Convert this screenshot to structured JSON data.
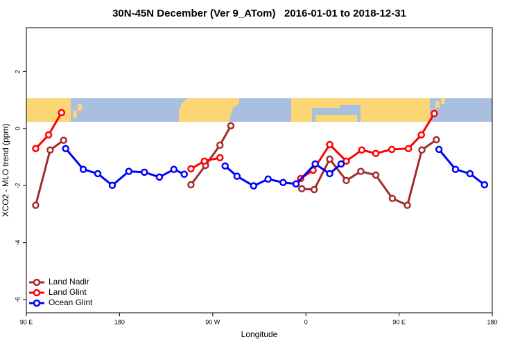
{
  "chart_data": {
    "type": "line",
    "title": "30N-45N December (Ver 9_ATom)   2016-01-01 to 2018-12-31",
    "x_label": "Longitude",
    "y_label": "XCO2 - MLO trend (ppm)",
    "xlim": [
      90,
      540
    ],
    "ylim": [
      -6.46,
      3.54
    ],
    "xticks": [
      {
        "value": 90,
        "label": "90 E"
      },
      {
        "value": 180,
        "label": "180"
      },
      {
        "value": 270,
        "label": "90 W"
      },
      {
        "value": 360,
        "label": "0"
      },
      {
        "value": 450,
        "label": "90 E"
      },
      {
        "value": 540,
        "label": "180"
      }
    ],
    "yticks": [
      -6,
      -4,
      -2,
      0,
      2
    ],
    "legend": "bottom-left",
    "series": [
      {
        "name": "Land Nadir",
        "color": "#a52a2a",
        "x": [
          99,
          113,
          126,
          null,
          249,
          263,
          277,
          287.5,
          null,
          356,
          368,
          383,
          399,
          413,
          427.5,
          443.5,
          458,
          472,
          486
        ],
        "values": [
          -2.69,
          -0.75,
          -0.41,
          null,
          -1.97,
          -1.29,
          -0.58,
          0.1,
          null,
          -2.11,
          -2.14,
          -1.07,
          -1.82,
          -1.5,
          -1.63,
          -2.45,
          -2.69,
          -0.75,
          -0.39
        ]
      },
      {
        "name": "Land Glint",
        "color": "#ff0000",
        "x": [
          99,
          111.5,
          124,
          null,
          249,
          262,
          277,
          null,
          355,
          367,
          383,
          399,
          414,
          427.5,
          443,
          459,
          471.5,
          484
        ],
        "values": [
          -0.7,
          -0.22,
          0.56,
          null,
          -1.41,
          -1.14,
          -1.02,
          null,
          -1.75,
          -1.46,
          -0.56,
          -1.14,
          -0.75,
          -0.87,
          -0.73,
          -0.7,
          -0.22,
          0.53
        ]
      },
      {
        "name": "Ocean Glint",
        "color": "#0000ff",
        "x": [
          128,
          145,
          159,
          173,
          189,
          204,
          218.5,
          232.5,
          242.5,
          null,
          282,
          293.5,
          309.5,
          323.5,
          338,
          350.5,
          369,
          383,
          394,
          null,
          488.5,
          504.5,
          518.5,
          532.5
        ],
        "values": [
          -0.7,
          -1.43,
          -1.58,
          -1.99,
          -1.5,
          -1.53,
          -1.7,
          -1.43,
          -1.6,
          null,
          -1.31,
          -1.67,
          -2.01,
          -1.77,
          -1.89,
          -1.94,
          -1.24,
          -1.58,
          -1.24,
          null,
          -0.73,
          -1.43,
          -1.58,
          -1.97
        ]
      }
    ]
  }
}
